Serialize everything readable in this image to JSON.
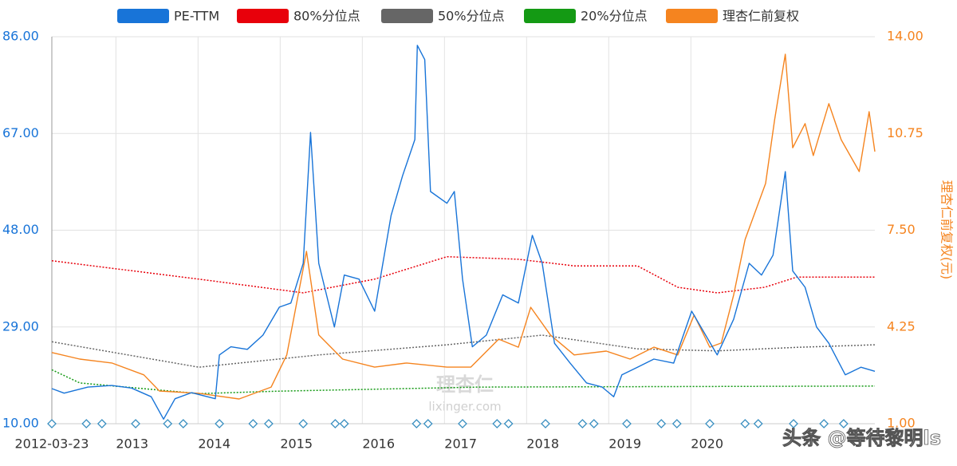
{
  "chart_data": {
    "type": "line",
    "xlim": [
      2012.22,
      2022.24
    ],
    "xticks": [
      {
        "value": 2012.22,
        "label": "2012-03-23"
      },
      2013,
      2014,
      2015,
      2016,
      2017,
      2018,
      2019,
      2020
    ],
    "ylim": [
      10,
      86
    ],
    "yticks": [
      {
        "value": 10,
        "label": "10.00"
      },
      {
        "value": 29,
        "label": "29.00"
      },
      {
        "value": 48,
        "label": "48.00"
      },
      {
        "value": 67,
        "label": "67.00"
      },
      {
        "value": 86,
        "label": "86.00"
      }
    ],
    "y2lim": [
      1,
      14
    ],
    "y2ticks": [
      {
        "value": 1,
        "label": "1.00"
      },
      {
        "value": 4.25,
        "label": "4.25"
      },
      {
        "value": 7.5,
        "label": "7.50"
      },
      {
        "value": 10.75,
        "label": "10.75"
      },
      {
        "value": 14,
        "label": "14.00"
      }
    ],
    "y2label": "理杏仁前复权(元)",
    "grid": true,
    "series": [
      {
        "name": "PE-TTM",
        "color": "#1874d8",
        "style": "solid",
        "x": [
          2012.22,
          2012.37,
          2012.66,
          2012.95,
          2013.19,
          2013.43,
          2013.58,
          2013.72,
          2013.92,
          2014.21,
          2014.26,
          2014.4,
          2014.6,
          2014.79,
          2014.99,
          2015.13,
          2015.28,
          2015.37,
          2015.47,
          2015.66,
          2015.78,
          2015.96,
          2016.15,
          2016.35,
          2016.49,
          2016.64,
          2016.67,
          2016.76,
          2016.83,
          2017.03,
          2017.12,
          2017.22,
          2017.34,
          2017.51,
          2017.71,
          2017.9,
          2018.07,
          2018.19,
          2018.34,
          2018.53,
          2018.73,
          2018.92,
          2019.06,
          2019.16,
          2019.35,
          2019.55,
          2019.79,
          2020.01,
          2020.18,
          2020.32,
          2020.52,
          2020.71,
          2020.86,
          2021.0,
          2021.15,
          2021.24,
          2021.39,
          2021.53,
          2021.68,
          2021.88,
          2022.07,
          2022.24
        ],
        "values": [
          16.9,
          16.0,
          17.2,
          17.5,
          17.0,
          15.3,
          10.9,
          14.9,
          16.1,
          14.9,
          23.5,
          25.1,
          24.6,
          27.4,
          32.9,
          33.7,
          41.5,
          67.2,
          41.5,
          29.0,
          39.2,
          38.4,
          32.1,
          50.9,
          58.7,
          65.8,
          84.3,
          81.5,
          55.6,
          53.3,
          55.6,
          38.4,
          25.1,
          27.4,
          35.3,
          33.7,
          47.0,
          41.5,
          25.8,
          21.9,
          18.0,
          17.2,
          15.3,
          19.6,
          21.1,
          22.7,
          21.9,
          32.1,
          27.4,
          23.5,
          30.5,
          41.5,
          39.2,
          43.1,
          59.5,
          40.0,
          36.8,
          29.0,
          25.8,
          19.6,
          21.1,
          20.3
        ]
      },
      {
        "name": "80%分位点",
        "color": "#e8000b",
        "style": "dotted",
        "x": [
          2012.22,
          2014.01,
          2015.28,
          2016.15,
          2017.03,
          2017.9,
          2018.58,
          2019.35,
          2019.84,
          2020.32,
          2020.9,
          2021.29,
          2022.24
        ],
        "values": [
          42.0,
          38.4,
          35.7,
          38.4,
          42.8,
          42.3,
          41.0,
          41.0,
          36.8,
          35.7,
          36.8,
          38.8,
          38.8
        ]
      },
      {
        "name": "50%分位点",
        "color": "#666666",
        "style": "dotted",
        "x": [
          2012.22,
          2014.01,
          2015.47,
          2017.03,
          2018.19,
          2019.35,
          2020.32,
          2021.29,
          2022.24
        ],
        "values": [
          26.1,
          21.1,
          23.5,
          25.5,
          27.4,
          24.7,
          24.3,
          25.0,
          25.5
        ]
      },
      {
        "name": "20%分位点",
        "color": "#149a14",
        "style": "dotted",
        "x": [
          2012.22,
          2012.56,
          2014.01,
          2014.99,
          2017.42,
          2022.24
        ],
        "values": [
          20.6,
          18.0,
          15.9,
          16.4,
          17.2,
          17.4
        ]
      },
      {
        "name": "理杏仁前复权",
        "color": "#f5841f",
        "style": "solid",
        "axis": "y2",
        "x": [
          2012.22,
          2012.56,
          2012.95,
          2013.34,
          2013.53,
          2014.01,
          2014.5,
          2014.89,
          2015.08,
          2015.32,
          2015.47,
          2015.76,
          2016.15,
          2016.54,
          2017.03,
          2017.32,
          2017.66,
          2017.9,
          2018.05,
          2018.29,
          2018.58,
          2018.97,
          2019.26,
          2019.55,
          2019.84,
          2020.04,
          2020.23,
          2020.37,
          2020.52,
          2020.66,
          2020.91,
          2021.02,
          2021.15,
          2021.24,
          2021.39,
          2021.49,
          2021.68,
          2021.83,
          2022.05,
          2022.17,
          2022.24
        ],
        "values": [
          3.39,
          3.17,
          3.04,
          2.64,
          2.1,
          2.02,
          1.83,
          2.23,
          3.31,
          6.79,
          3.98,
          3.17,
          2.9,
          3.04,
          2.9,
          2.9,
          3.84,
          3.57,
          4.91,
          3.98,
          3.31,
          3.44,
          3.17,
          3.57,
          3.31,
          4.65,
          3.57,
          3.71,
          5.32,
          7.19,
          9.07,
          11.21,
          13.41,
          10.27,
          11.08,
          10.01,
          11.75,
          10.54,
          9.47,
          11.48,
          10.14
        ]
      }
    ],
    "events_x": [
      2012.22,
      2012.64,
      2012.83,
      2013.24,
      2013.63,
      2013.82,
      2014.26,
      2014.67,
      2014.86,
      2015.28,
      2015.67,
      2015.78,
      2016.66,
      2016.8,
      2017.22,
      2017.64,
      2017.78,
      2018.23,
      2018.68,
      2018.82,
      2019.22,
      2019.64,
      2019.83,
      2020.23,
      2020.66,
      2020.82,
      2021.25,
      2021.62,
      2021.86
    ],
    "watermark": [
      "理杏仁",
      "lixinger.com"
    ],
    "overlay": "头条 @等待黎明ls"
  }
}
